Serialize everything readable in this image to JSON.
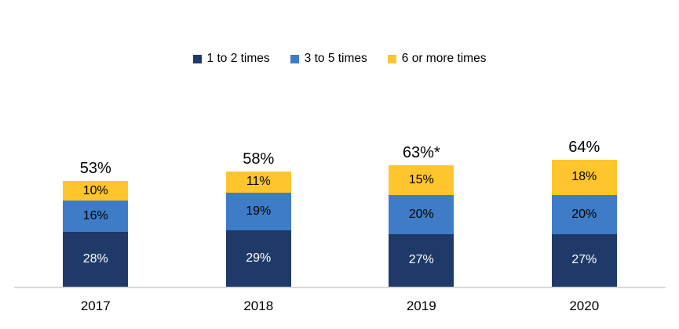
{
  "chart_data": {
    "type": "bar",
    "stacked": true,
    "title": "",
    "categories": [
      "2017",
      "2018",
      "2019",
      "2020"
    ],
    "series": [
      {
        "name": "1 to 2 times",
        "values": [
          28,
          29,
          27,
          27
        ],
        "color": "#1F3A68",
        "label_color": "#FFFFFF"
      },
      {
        "name": "3 to 5 times",
        "values": [
          16,
          19,
          20,
          20
        ],
        "color": "#3E7CC7",
        "label_color": "#000000"
      },
      {
        "name": "6 or more times",
        "values": [
          10,
          11,
          15,
          18
        ],
        "color": "#FFC52D",
        "label_color": "#000000"
      }
    ],
    "totals": [
      "53%",
      "58%",
      "63%*",
      "64%"
    ],
    "value_suffix": "%",
    "ylim": [
      0,
      100
    ],
    "grid": false,
    "legend_position": "top",
    "axis_color": "#D9D9D9",
    "background_color": "#FFFFFF"
  }
}
